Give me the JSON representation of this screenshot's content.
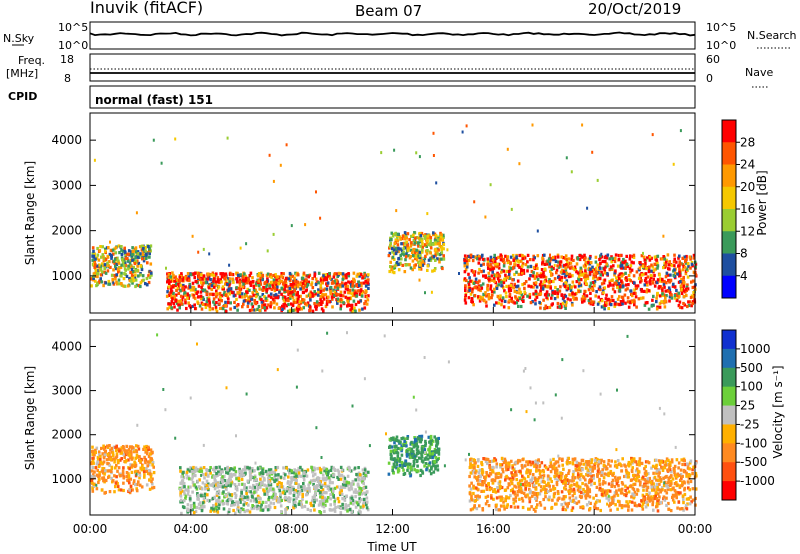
{
  "header": {
    "site": "Inuvik (fitACF)",
    "beam": "Beam 07",
    "date": "20/Oct/2019"
  },
  "noise_panel": {
    "left_label": "N.Sky",
    "right_label": "N.Search",
    "left_ticks": [
      "10^5",
      "10^0"
    ],
    "right_ticks": [
      "10^5",
      "10^0"
    ]
  },
  "freq_panel": {
    "left_label_1": "Freq.",
    "left_label_2": "[MHz]",
    "right_label": "Nave",
    "left_ticks": [
      "18",
      "8"
    ],
    "right_ticks": [
      "60",
      "0"
    ]
  },
  "cpid": {
    "label": "CPID",
    "text": "normal (fast) 151"
  },
  "range_axis": {
    "label": "Slant Range [km]",
    "ticks": [
      "4000",
      "3000",
      "2000",
      "1000"
    ]
  },
  "time_axis": {
    "label": "Time UT",
    "ticks": [
      "00:00",
      "04:00",
      "08:00",
      "12:00",
      "16:00",
      "20:00",
      "00:00"
    ]
  },
  "power_colorbar": {
    "label": "Power [dB]",
    "ticks": [
      "28",
      "24",
      "20",
      "16",
      "12",
      "8",
      "4"
    ],
    "colors": [
      "#ff0000",
      "#ff5500",
      "#ff9900",
      "#f5c800",
      "#9acd32",
      "#3a9a5a",
      "#1e4fa0",
      "#0000ff"
    ]
  },
  "velocity_colorbar": {
    "label": "Velocity [m s⁻¹]",
    "ticks": [
      "1000",
      "500",
      "100",
      "25",
      "-25",
      "-100",
      "-500",
      "-1000"
    ],
    "colors": [
      "#1030d0",
      "#1f6fb0",
      "#3a9a5a",
      "#6ccf3a",
      "#c0c0c0",
      "#ffb000",
      "#ff8a20",
      "#ff5010",
      "#ff0000"
    ]
  },
  "chart_data": [
    {
      "type": "heatmap",
      "name": "power",
      "xlabel": "Time UT",
      "ylabel": "Slant Range [km]",
      "ylim": [
        180,
        4600
      ],
      "xlim": [
        "00:00",
        "24:00"
      ],
      "features": [
        {
          "t0": 0.0,
          "t1": 2.4,
          "r0": 800,
          "r1": 1700,
          "level": "mixed"
        },
        {
          "t0": 3.0,
          "t1": 11.0,
          "r0": 250,
          "r1": 1100,
          "level": "high"
        },
        {
          "t0": 11.8,
          "t1": 14.0,
          "r0": 1100,
          "r1": 2000,
          "level": "mixed"
        },
        {
          "t0": 14.8,
          "t1": 24.0,
          "r0": 300,
          "r1": 1500,
          "level": "high"
        }
      ]
    },
    {
      "type": "heatmap",
      "name": "velocity",
      "xlabel": "Time UT",
      "ylabel": "Slant Range [km]",
      "ylim": [
        180,
        4600
      ],
      "xlim": [
        "00:00",
        "24:00"
      ],
      "features": [
        {
          "t0": 0.0,
          "t1": 2.5,
          "r0": 700,
          "r1": 1800,
          "v": -300
        },
        {
          "t0": 3.5,
          "t1": 11.0,
          "r0": 250,
          "r1": 1300,
          "v": 0
        },
        {
          "t0": 11.8,
          "t1": 13.8,
          "r0": 1100,
          "r1": 2000,
          "v": 200
        },
        {
          "t0": 15.0,
          "t1": 24.0,
          "r0": 300,
          "r1": 1500,
          "v": -200
        }
      ]
    }
  ]
}
